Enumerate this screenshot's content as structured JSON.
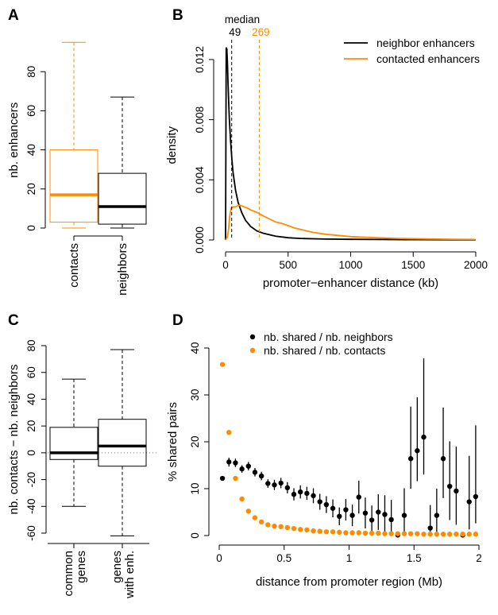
{
  "colors": {
    "contacts": "#ff8c00",
    "neighbors": "#000000"
  },
  "chart_data": [
    {
      "panel": "A",
      "type": "box",
      "ylabel": "nb. enhancers",
      "ylim": [
        0,
        100
      ],
      "yticks": [
        0,
        20,
        40,
        60,
        80
      ],
      "boxes": [
        {
          "label": "contacts",
          "color": "#ff8c00",
          "min": 0,
          "q1": 3,
          "median": 17,
          "q3": 40,
          "max": 95
        },
        {
          "label": "neighbors",
          "color": "#000000",
          "min": 0,
          "q1": 2,
          "median": 11,
          "q3": 28,
          "max": 67
        }
      ]
    },
    {
      "panel": "B",
      "type": "line",
      "xlabel": "promoter−enhancer distance (kb)",
      "ylabel": "density",
      "xlim": [
        0,
        2000
      ],
      "ylim": [
        0,
        0.013
      ],
      "xticks": [
        0,
        500,
        1000,
        1500,
        2000
      ],
      "yticks": [
        "0.000",
        "0.004",
        "0.008",
        "0.012"
      ],
      "median_label": "median",
      "medians": [
        {
          "value": 49,
          "label": "49",
          "color": "#000000"
        },
        {
          "value": 269,
          "label": "269",
          "color": "#ff8c00"
        }
      ],
      "legend_position": "top-right",
      "series": [
        {
          "name": "neighbor enhancers",
          "color": "#000000",
          "x": [
            0,
            5,
            10,
            15,
            20,
            25,
            30,
            40,
            50,
            60,
            80,
            100,
            130,
            160,
            200,
            250,
            300,
            400,
            500,
            600,
            800,
            1000,
            1200,
            1500,
            2000
          ],
          "y": [
            0,
            0.0128,
            0.0127,
            0.0117,
            0.0104,
            0.0092,
            0.0081,
            0.0066,
            0.0054,
            0.0045,
            0.0033,
            0.0025,
            0.0018,
            0.0013,
            0.0009,
            0.0006,
            0.00045,
            0.00025,
            0.00015,
            0.0001,
            6e-05,
            4e-05,
            3e-05,
            2e-05,
            1e-05
          ]
        },
        {
          "name": "contacted enhancers",
          "color": "#ff8c00",
          "x": [
            0,
            15,
            25,
            35,
            45,
            60,
            80,
            100,
            120,
            150,
            180,
            200,
            230,
            260,
            300,
            350,
            400,
            450,
            500,
            550,
            600,
            700,
            800,
            900,
            1000,
            1200,
            1400,
            1600,
            1800,
            2000
          ],
          "y": [
            0,
            0.0002,
            0.0008,
            0.0017,
            0.0021,
            0.0022,
            0.0022,
            0.0023,
            0.0023,
            0.0022,
            0.0021,
            0.002,
            0.0019,
            0.0018,
            0.0016,
            0.0014,
            0.0012,
            0.0011,
            0.00095,
            0.0008,
            0.0007,
            0.0005,
            0.00038,
            0.0003,
            0.00022,
            0.00015,
            0.0001,
            7e-05,
            5e-05,
            3e-05
          ]
        }
      ]
    },
    {
      "panel": "C",
      "type": "box",
      "ylabel": "nb. contacts − nb. neighbors",
      "ylim": [
        -62,
        80
      ],
      "yticks": [
        -60,
        -40,
        -20,
        0,
        20,
        40,
        60,
        80
      ],
      "boxes": [
        {
          "label": "common\ngenes",
          "color": "#000000",
          "min": -40,
          "q1": -5,
          "median": 0,
          "q3": 19,
          "max": 55
        },
        {
          "label": "genes\nwith enh.",
          "color": "#000000",
          "min": -62,
          "q1": -10,
          "median": 5,
          "q3": 25,
          "max": 77
        }
      ]
    },
    {
      "panel": "D",
      "type": "scatter",
      "xlabel": "distance from promoter region (Mb)",
      "ylabel": "% shared pairs",
      "xlim": [
        0,
        2
      ],
      "ylim": [
        0,
        40
      ],
      "xticks": [
        "0",
        "0.5",
        "1",
        "1.5",
        "2"
      ],
      "yticks": [
        0,
        10,
        20,
        30,
        40
      ],
      "legend_position": "top-left",
      "series": [
        {
          "name": "nb. shared / nb. neighbors",
          "color": "#000000",
          "x": [
            0.025,
            0.075,
            0.125,
            0.175,
            0.225,
            0.275,
            0.325,
            0.375,
            0.425,
            0.475,
            0.525,
            0.575,
            0.625,
            0.675,
            0.725,
            0.775,
            0.825,
            0.875,
            0.925,
            0.975,
            1.025,
            1.075,
            1.125,
            1.175,
            1.225,
            1.275,
            1.325,
            1.375,
            1.425,
            1.475,
            1.525,
            1.575,
            1.625,
            1.675,
            1.725,
            1.775,
            1.825,
            1.875,
            1.925,
            1.975
          ],
          "y": [
            12.2,
            15.7,
            15.5,
            14.2,
            14.8,
            13.5,
            12.7,
            11.1,
            10.8,
            11.2,
            10.2,
            8.8,
            9.3,
            9.0,
            8.5,
            7.2,
            6.6,
            5.8,
            4.1,
            5.5,
            4.3,
            8.2,
            4.8,
            3.3,
            5.0,
            4.5,
            3.4,
            0.1,
            4.3,
            16.4,
            18.1,
            21.0,
            1.6,
            4.3,
            16.4,
            10.5,
            9.5,
            0.1,
            7.2,
            8.3
          ],
          "lo": [
            11.8,
            14.7,
            14.6,
            13.4,
            13.9,
            12.6,
            11.8,
            10.2,
            9.7,
            10.1,
            9.0,
            7.5,
            7.9,
            7.6,
            6.9,
            5.5,
            4.8,
            3.9,
            2.2,
            3.2,
            2.0,
            4.7,
            1.5,
            0.2,
            1.2,
            0.4,
            0.0,
            0.0,
            0.0,
            10.0,
            11.6,
            13.0,
            0.0,
            0.0,
            8.0,
            3.3,
            2.3,
            0.0,
            1.3,
            2.6
          ],
          "hi": [
            12.6,
            16.6,
            16.4,
            15.0,
            15.7,
            14.4,
            13.6,
            12.0,
            11.9,
            12.3,
            11.4,
            10.1,
            10.7,
            10.4,
            10.1,
            8.9,
            8.4,
            7.7,
            6.0,
            7.8,
            6.6,
            11.7,
            8.1,
            6.4,
            8.8,
            8.6,
            7.6,
            0.3,
            10.1,
            27.5,
            29.5,
            37.8,
            6.5,
            10.0,
            27.3,
            20.1,
            19.0,
            0.3,
            17.0,
            23.5
          ]
        },
        {
          "name": "nb. shared / nb. contacts",
          "color": "#ff8c00",
          "x": [
            0.025,
            0.075,
            0.125,
            0.175,
            0.225,
            0.275,
            0.325,
            0.375,
            0.425,
            0.475,
            0.525,
            0.575,
            0.625,
            0.675,
            0.725,
            0.775,
            0.825,
            0.875,
            0.925,
            0.975,
            1.025,
            1.075,
            1.125,
            1.175,
            1.225,
            1.275,
            1.325,
            1.375,
            1.425,
            1.475,
            1.525,
            1.575,
            1.625,
            1.675,
            1.725,
            1.775,
            1.825,
            1.875,
            1.925,
            1.975
          ],
          "y": [
            36.5,
            22.0,
            12.2,
            7.8,
            5.2,
            3.8,
            2.9,
            2.3,
            2.0,
            1.9,
            1.7,
            1.5,
            1.3,
            1.2,
            1.0,
            0.9,
            0.8,
            0.8,
            0.7,
            0.6,
            0.6,
            0.6,
            0.5,
            0.5,
            0.5,
            0.4,
            0.4,
            0.4,
            0.4,
            0.4,
            0.4,
            0.3,
            0.3,
            0.3,
            0.3,
            0.3,
            0.3,
            0.3,
            0.3,
            0.3
          ]
        }
      ]
    }
  ]
}
